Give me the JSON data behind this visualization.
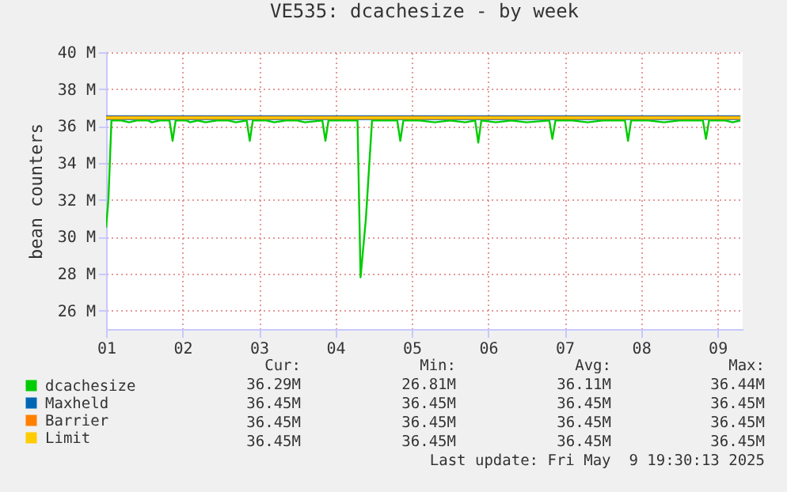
{
  "chart_data": {
    "type": "line",
    "title": "VE535: dcachesize - by week",
    "ylabel": "bean counters",
    "xlim": [
      1,
      9.33
    ],
    "xticks": [
      {
        "value": 1,
        "label": "01"
      },
      {
        "value": 2,
        "label": "02"
      },
      {
        "value": 3,
        "label": "03"
      },
      {
        "value": 4,
        "label": "04"
      },
      {
        "value": 5,
        "label": "05"
      },
      {
        "value": 6,
        "label": "06"
      },
      {
        "value": 7,
        "label": "07"
      },
      {
        "value": 8,
        "label": "08"
      },
      {
        "value": 9,
        "label": "09"
      }
    ],
    "ylim": [
      25,
      40
    ],
    "yticks": [
      {
        "value": 26,
        "label": "26 M"
      },
      {
        "value": 28,
        "label": "28 M"
      },
      {
        "value": 30,
        "label": "30 M"
      },
      {
        "value": 32,
        "label": "32 M"
      },
      {
        "value": 34,
        "label": "34 M"
      },
      {
        "value": 36,
        "label": "36 M"
      },
      {
        "value": 38,
        "label": "38 M"
      },
      {
        "value": 40,
        "label": "40 M"
      }
    ],
    "grid": true,
    "legend": "bottom left",
    "series": [
      {
        "name": "dcachesize",
        "color": "#00cc00",
        "x": [
          1.0,
          1.03,
          1.07,
          1.2,
          1.3,
          1.4,
          1.55,
          1.6,
          1.7,
          1.83,
          1.87,
          1.91,
          2.05,
          2.1,
          2.2,
          2.3,
          2.45,
          2.6,
          2.7,
          2.84,
          2.88,
          2.92,
          3.1,
          3.2,
          3.35,
          3.5,
          3.6,
          3.83,
          3.87,
          3.91,
          4.1,
          4.29,
          4.33,
          4.4,
          4.48,
          4.6,
          4.81,
          4.85,
          4.89,
          5.1,
          5.3,
          5.5,
          5.7,
          5.83,
          5.87,
          5.91,
          6.1,
          6.3,
          6.5,
          6.8,
          6.84,
          6.88,
          7.1,
          7.3,
          7.5,
          7.79,
          7.83,
          7.87,
          8.1,
          8.3,
          8.5,
          8.81,
          8.85,
          8.89,
          9.1,
          9.2,
          9.3
        ],
        "values": [
          30.5,
          32,
          36.3,
          36.3,
          36.2,
          36.3,
          36.3,
          36.2,
          36.3,
          36.3,
          35.2,
          36.3,
          36.3,
          36.2,
          36.3,
          36.2,
          36.3,
          36.3,
          36.2,
          36.3,
          35.2,
          36.3,
          36.3,
          36.2,
          36.3,
          36.3,
          36.2,
          36.3,
          35.2,
          36.3,
          36.3,
          36.3,
          27.8,
          31,
          36.3,
          36.3,
          36.3,
          35.2,
          36.3,
          36.3,
          36.2,
          36.3,
          36.2,
          36.3,
          35.1,
          36.3,
          36.2,
          36.3,
          36.2,
          36.3,
          35.3,
          36.3,
          36.3,
          36.2,
          36.3,
          36.3,
          35.2,
          36.3,
          36.3,
          36.2,
          36.3,
          36.3,
          35.3,
          36.3,
          36.3,
          36.2,
          36.3
        ]
      },
      {
        "name": "Maxheld",
        "color": "#0066b3",
        "x": [
          1,
          9.3
        ],
        "values": [
          36.45,
          36.45
        ]
      },
      {
        "name": "Barrier",
        "color": "#ff8000",
        "x": [
          1,
          9.3
        ],
        "values": [
          36.45,
          36.45
        ]
      },
      {
        "name": "Limit",
        "color": "#ffcc00",
        "x": [
          1,
          9.3
        ],
        "values": [
          36.45,
          36.45
        ]
      }
    ],
    "annotations": [
      "Cur:",
      "Min:",
      "Avg:",
      "Max:",
      "36.29M",
      "26.81M",
      "36.11M",
      "36.44M",
      "36.45M",
      "36.45M",
      "36.45M",
      "36.45M",
      "36.45M",
      "36.45M",
      "36.45M",
      "36.45M",
      "36.45M",
      "36.45M",
      "36.45M",
      "36.45M",
      "Last update: Fri May  9 19:30:13 2025"
    ]
  }
}
